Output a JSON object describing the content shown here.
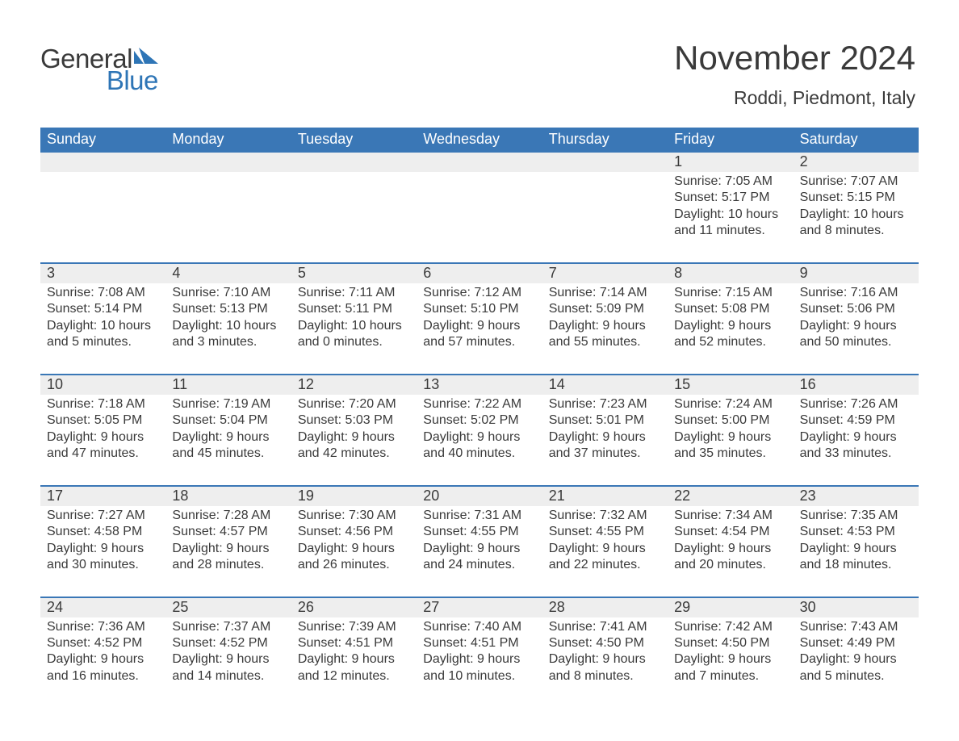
{
  "logo": {
    "text_general": "General",
    "text_blue": "Blue",
    "general_color": "#3a3a3a",
    "blue_color": "#2e75b6",
    "icon_color": "#2e75b6"
  },
  "header": {
    "title": "November 2024",
    "title_color": "#3a3a3a",
    "title_fontsize": 42,
    "location": "Roddi, Piedmont, Italy",
    "location_color": "#3a3a3a",
    "location_fontsize": 23
  },
  "calendar": {
    "header_bg": "#3a77b6",
    "header_text_color": "#ffffff",
    "week_divider_color": "#3a77b6",
    "daynum_bg": "#eeeeee",
    "daynum_color": "#3a3a3a",
    "body_text_color": "#3a3a3a",
    "background_color": "#ffffff",
    "days_of_week": [
      "Sunday",
      "Monday",
      "Tuesday",
      "Wednesday",
      "Thursday",
      "Friday",
      "Saturday"
    ],
    "weeks": [
      [
        null,
        null,
        null,
        null,
        null,
        {
          "n": "1",
          "sunrise": "Sunrise: 7:05 AM",
          "sunset": "Sunset: 5:17 PM",
          "daylight": "Daylight: 10 hours and 11 minutes."
        },
        {
          "n": "2",
          "sunrise": "Sunrise: 7:07 AM",
          "sunset": "Sunset: 5:15 PM",
          "daylight": "Daylight: 10 hours and 8 minutes."
        }
      ],
      [
        {
          "n": "3",
          "sunrise": "Sunrise: 7:08 AM",
          "sunset": "Sunset: 5:14 PM",
          "daylight": "Daylight: 10 hours and 5 minutes."
        },
        {
          "n": "4",
          "sunrise": "Sunrise: 7:10 AM",
          "sunset": "Sunset: 5:13 PM",
          "daylight": "Daylight: 10 hours and 3 minutes."
        },
        {
          "n": "5",
          "sunrise": "Sunrise: 7:11 AM",
          "sunset": "Sunset: 5:11 PM",
          "daylight": "Daylight: 10 hours and 0 minutes."
        },
        {
          "n": "6",
          "sunrise": "Sunrise: 7:12 AM",
          "sunset": "Sunset: 5:10 PM",
          "daylight": "Daylight: 9 hours and 57 minutes."
        },
        {
          "n": "7",
          "sunrise": "Sunrise: 7:14 AM",
          "sunset": "Sunset: 5:09 PM",
          "daylight": "Daylight: 9 hours and 55 minutes."
        },
        {
          "n": "8",
          "sunrise": "Sunrise: 7:15 AM",
          "sunset": "Sunset: 5:08 PM",
          "daylight": "Daylight: 9 hours and 52 minutes."
        },
        {
          "n": "9",
          "sunrise": "Sunrise: 7:16 AM",
          "sunset": "Sunset: 5:06 PM",
          "daylight": "Daylight: 9 hours and 50 minutes."
        }
      ],
      [
        {
          "n": "10",
          "sunrise": "Sunrise: 7:18 AM",
          "sunset": "Sunset: 5:05 PM",
          "daylight": "Daylight: 9 hours and 47 minutes."
        },
        {
          "n": "11",
          "sunrise": "Sunrise: 7:19 AM",
          "sunset": "Sunset: 5:04 PM",
          "daylight": "Daylight: 9 hours and 45 minutes."
        },
        {
          "n": "12",
          "sunrise": "Sunrise: 7:20 AM",
          "sunset": "Sunset: 5:03 PM",
          "daylight": "Daylight: 9 hours and 42 minutes."
        },
        {
          "n": "13",
          "sunrise": "Sunrise: 7:22 AM",
          "sunset": "Sunset: 5:02 PM",
          "daylight": "Daylight: 9 hours and 40 minutes."
        },
        {
          "n": "14",
          "sunrise": "Sunrise: 7:23 AM",
          "sunset": "Sunset: 5:01 PM",
          "daylight": "Daylight: 9 hours and 37 minutes."
        },
        {
          "n": "15",
          "sunrise": "Sunrise: 7:24 AM",
          "sunset": "Sunset: 5:00 PM",
          "daylight": "Daylight: 9 hours and 35 minutes."
        },
        {
          "n": "16",
          "sunrise": "Sunrise: 7:26 AM",
          "sunset": "Sunset: 4:59 PM",
          "daylight": "Daylight: 9 hours and 33 minutes."
        }
      ],
      [
        {
          "n": "17",
          "sunrise": "Sunrise: 7:27 AM",
          "sunset": "Sunset: 4:58 PM",
          "daylight": "Daylight: 9 hours and 30 minutes."
        },
        {
          "n": "18",
          "sunrise": "Sunrise: 7:28 AM",
          "sunset": "Sunset: 4:57 PM",
          "daylight": "Daylight: 9 hours and 28 minutes."
        },
        {
          "n": "19",
          "sunrise": "Sunrise: 7:30 AM",
          "sunset": "Sunset: 4:56 PM",
          "daylight": "Daylight: 9 hours and 26 minutes."
        },
        {
          "n": "20",
          "sunrise": "Sunrise: 7:31 AM",
          "sunset": "Sunset: 4:55 PM",
          "daylight": "Daylight: 9 hours and 24 minutes."
        },
        {
          "n": "21",
          "sunrise": "Sunrise: 7:32 AM",
          "sunset": "Sunset: 4:55 PM",
          "daylight": "Daylight: 9 hours and 22 minutes."
        },
        {
          "n": "22",
          "sunrise": "Sunrise: 7:34 AM",
          "sunset": "Sunset: 4:54 PM",
          "daylight": "Daylight: 9 hours and 20 minutes."
        },
        {
          "n": "23",
          "sunrise": "Sunrise: 7:35 AM",
          "sunset": "Sunset: 4:53 PM",
          "daylight": "Daylight: 9 hours and 18 minutes."
        }
      ],
      [
        {
          "n": "24",
          "sunrise": "Sunrise: 7:36 AM",
          "sunset": "Sunset: 4:52 PM",
          "daylight": "Daylight: 9 hours and 16 minutes."
        },
        {
          "n": "25",
          "sunrise": "Sunrise: 7:37 AM",
          "sunset": "Sunset: 4:52 PM",
          "daylight": "Daylight: 9 hours and 14 minutes."
        },
        {
          "n": "26",
          "sunrise": "Sunrise: 7:39 AM",
          "sunset": "Sunset: 4:51 PM",
          "daylight": "Daylight: 9 hours and 12 minutes."
        },
        {
          "n": "27",
          "sunrise": "Sunrise: 7:40 AM",
          "sunset": "Sunset: 4:51 PM",
          "daylight": "Daylight: 9 hours and 10 minutes."
        },
        {
          "n": "28",
          "sunrise": "Sunrise: 7:41 AM",
          "sunset": "Sunset: 4:50 PM",
          "daylight": "Daylight: 9 hours and 8 minutes."
        },
        {
          "n": "29",
          "sunrise": "Sunrise: 7:42 AM",
          "sunset": "Sunset: 4:50 PM",
          "daylight": "Daylight: 9 hours and 7 minutes."
        },
        {
          "n": "30",
          "sunrise": "Sunrise: 7:43 AM",
          "sunset": "Sunset: 4:49 PM",
          "daylight": "Daylight: 9 hours and 5 minutes."
        }
      ]
    ]
  }
}
